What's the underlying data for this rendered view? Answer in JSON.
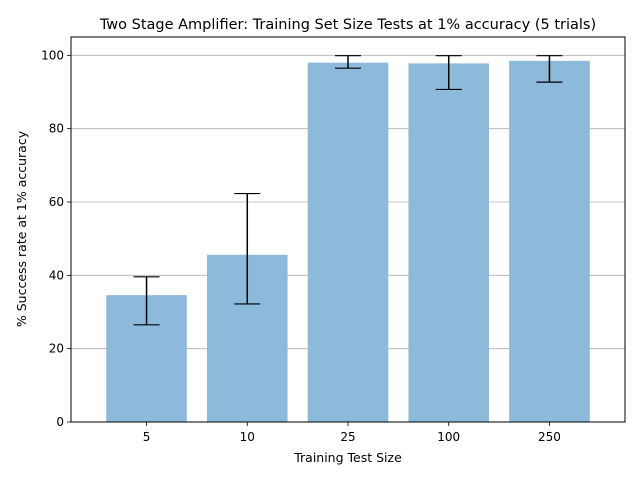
{
  "chart_data": {
    "type": "bar",
    "title": "Two Stage Amplifier: Training Set Size Tests at 1% accuracy (5 trials)",
    "xlabel": "Training Test Size",
    "ylabel": "% Success rate at 1% accuracy",
    "categories": [
      "5",
      "10",
      "25",
      "100",
      "250"
    ],
    "values": [
      34.6,
      45.6,
      98.0,
      97.8,
      98.5
    ],
    "error_low": [
      26.5,
      32.2,
      96.5,
      90.7,
      92.7
    ],
    "error_high": [
      39.6,
      62.3,
      99.9,
      99.9,
      99.9
    ],
    "ylim": [
      0,
      105
    ],
    "yticks": [
      0,
      20,
      40,
      60,
      80,
      100
    ],
    "grid": "horizontal",
    "bar_color": "#8db9db",
    "error_color": "#000000"
  }
}
